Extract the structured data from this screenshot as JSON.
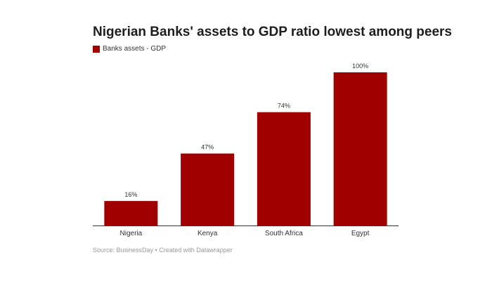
{
  "title": "Nigerian Banks' assets to GDP ratio lowest among peers",
  "source": "Source: BusinessDay • Created with Datawrapper",
  "chart_data": {
    "type": "bar",
    "title": "Nigerian Banks' assets to GDP ratio lowest among peers",
    "categories": [
      "Nigeria",
      "Kenya",
      "South Africa",
      "Egypt"
    ],
    "series": [
      {
        "name": "Banks assets - GDP",
        "values": [
          16,
          47,
          74,
          100
        ],
        "color": "#a00000"
      }
    ],
    "data_labels": [
      "16%",
      "47%",
      "74%",
      "100%"
    ],
    "ylim": [
      0,
      100
    ],
    "grid": false,
    "legend": "top-left"
  }
}
